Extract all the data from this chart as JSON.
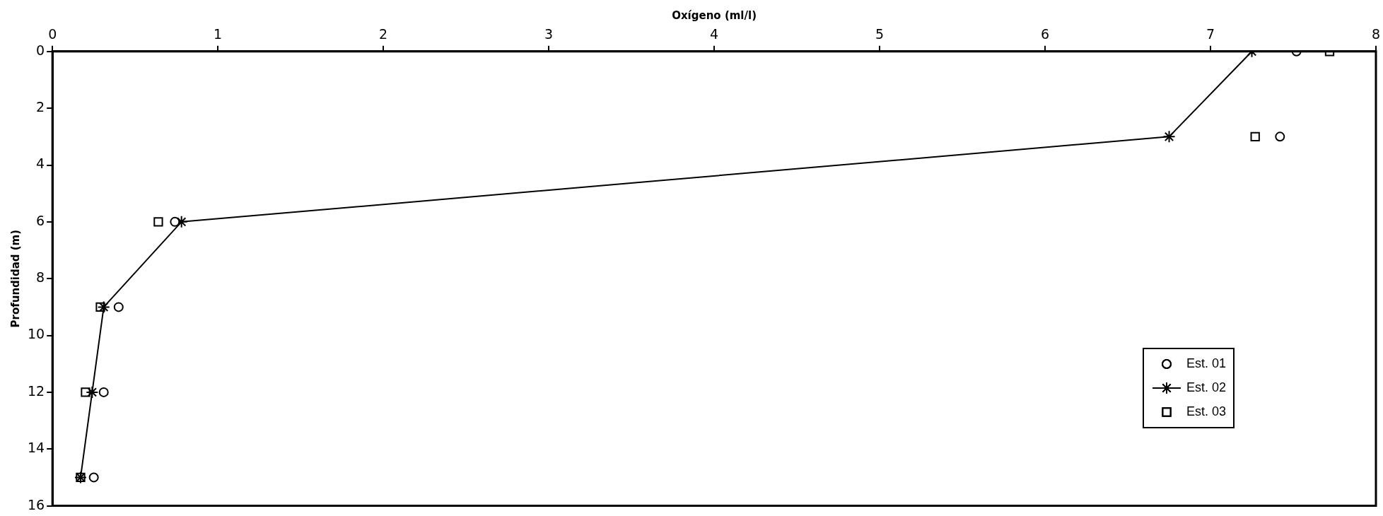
{
  "chart_data": {
    "type": "scatter",
    "xlabel": "Oxígeno (ml/l)",
    "ylabel": "Profundidad (m)",
    "xlim": [
      0,
      8
    ],
    "xticks": [
      0,
      1,
      2,
      3,
      4,
      5,
      6,
      7,
      8
    ],
    "ylim": [
      16,
      0
    ],
    "yticks": [
      0,
      2,
      4,
      6,
      8,
      10,
      12,
      14,
      16
    ],
    "grid": false,
    "legend": "bottom right",
    "series": [
      {
        "name": "Est. 01",
        "marker": "circle",
        "color": "#000000",
        "x": [
          7.52,
          7.42,
          0.74,
          0.4,
          0.31,
          0.25
        ],
        "values": [
          0,
          3,
          6,
          9,
          12,
          15
        ]
      },
      {
        "name": "Est. 02",
        "type": "line",
        "marker": "cross",
        "color": "#000000",
        "x": [
          7.25,
          6.75,
          0.78,
          0.31,
          0.24,
          0.17
        ],
        "values": [
          0,
          3,
          6,
          9,
          12,
          15
        ]
      },
      {
        "name": "Est. 03",
        "marker": "square",
        "color": "#000000",
        "x": [
          7.72,
          7.27,
          0.64,
          0.29,
          0.2,
          0.17
        ],
        "values": [
          0,
          3,
          6,
          9,
          12,
          15
        ]
      }
    ]
  }
}
